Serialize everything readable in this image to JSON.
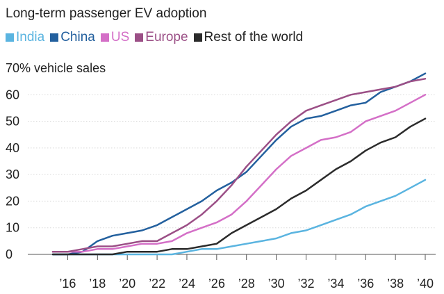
{
  "chart_data": {
    "type": "line",
    "title": "Long-term passenger EV adoption",
    "ylabel": "% vehicle sales",
    "ylim": [
      0,
      70
    ],
    "xlim": [
      2015,
      2040
    ],
    "grid": "horizontal",
    "legend_placement": "top-left",
    "yticks": [
      {
        "value": 0,
        "label": "0"
      },
      {
        "value": 10,
        "label": "10"
      },
      {
        "value": 20,
        "label": "20"
      },
      {
        "value": 30,
        "label": "30"
      },
      {
        "value": 40,
        "label": "40"
      },
      {
        "value": 50,
        "label": "50"
      },
      {
        "value": 60,
        "label": "60"
      },
      {
        "value": 70,
        "label": "70"
      }
    ],
    "xticks": [
      {
        "value": 2016,
        "label": "’16"
      },
      {
        "value": 2018,
        "label": "’18"
      },
      {
        "value": 2020,
        "label": "’20"
      },
      {
        "value": 2022,
        "label": "’22"
      },
      {
        "value": 2024,
        "label": "’24"
      },
      {
        "value": 2026,
        "label": "’26"
      },
      {
        "value": 2028,
        "label": "’28"
      },
      {
        "value": 2030,
        "label": "’30"
      },
      {
        "value": 2032,
        "label": "’32"
      },
      {
        "value": 2034,
        "label": "’34"
      },
      {
        "value": 2036,
        "label": "’36"
      },
      {
        "value": 2038,
        "label": "’38"
      },
      {
        "value": 2040,
        "label": "’40"
      }
    ],
    "x": [
      2015,
      2016,
      2017,
      2018,
      2019,
      2020,
      2021,
      2022,
      2023,
      2024,
      2025,
      2026,
      2027,
      2028,
      2029,
      2030,
      2031,
      2032,
      2033,
      2034,
      2035,
      2036,
      2037,
      2038,
      2039,
      2040
    ],
    "series": [
      {
        "name": "India",
        "color": "#5ab4e0",
        "values": [
          0,
          0,
          0,
          0,
          0,
          0,
          0,
          0,
          0,
          1,
          2,
          2,
          3,
          4,
          5,
          6,
          8,
          9,
          11,
          13,
          15,
          18,
          20,
          22,
          25,
          28
        ]
      },
      {
        "name": "China",
        "color": "#23609e",
        "values": [
          0,
          0,
          1,
          5,
          7,
          8,
          9,
          11,
          14,
          17,
          20,
          24,
          27,
          31,
          37,
          43,
          48,
          51,
          52,
          54,
          56,
          57,
          61,
          63,
          65,
          68
        ]
      },
      {
        "name": "US",
        "color": "#d46fc7",
        "values": [
          1,
          1,
          1,
          2,
          2,
          3,
          4,
          4,
          5,
          8,
          10,
          12,
          15,
          20,
          26,
          32,
          37,
          40,
          43,
          44,
          46,
          50,
          52,
          54,
          57,
          60
        ]
      },
      {
        "name": "Europe",
        "color": "#9b4f86",
        "values": [
          1,
          1,
          2,
          3,
          3,
          4,
          5,
          5,
          8,
          11,
          15,
          20,
          26,
          33,
          39,
          45,
          50,
          54,
          56,
          58,
          60,
          61,
          62,
          63,
          65,
          66
        ]
      },
      {
        "name": "Rest of the world",
        "color": "#2b2b2b",
        "values": [
          0,
          0,
          0,
          0,
          0,
          1,
          1,
          1,
          2,
          2,
          3,
          4,
          8,
          11,
          14,
          17,
          21,
          24,
          28,
          32,
          35,
          39,
          42,
          44,
          48,
          51
        ]
      }
    ]
  }
}
